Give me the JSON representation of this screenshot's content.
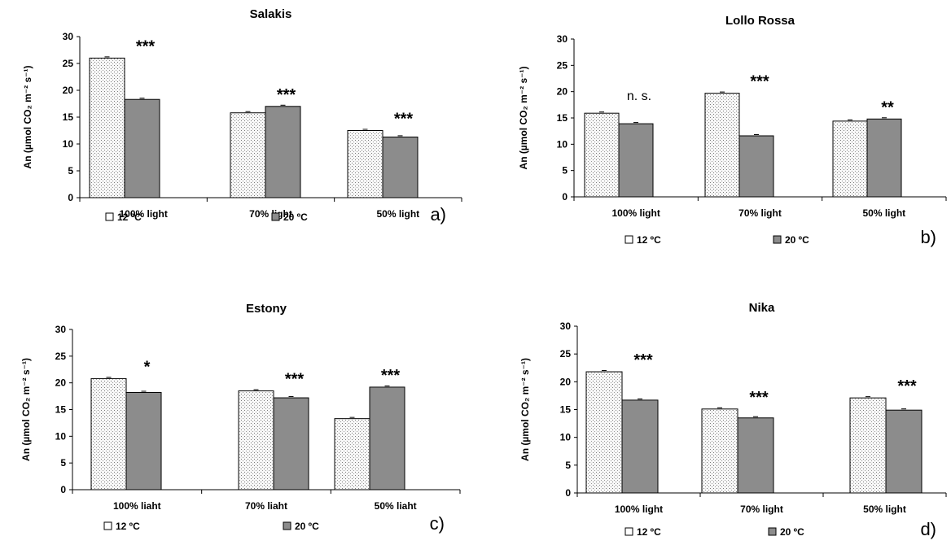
{
  "colors": {
    "series_20": "#8c8c8c",
    "series_12_fill": "#f6f6f6",
    "axis": "#000000"
  },
  "chart_data": [
    {
      "type": "bar",
      "panel": "a)",
      "title": "Salakis",
      "ylabel": "An (µmol CO₂ m⁻² s⁻¹)",
      "ylim": [
        0,
        30
      ],
      "yticks": [
        "0",
        "5",
        "10",
        "15",
        "20",
        "25",
        "30"
      ],
      "categories": [
        "100% light",
        "70% light",
        "50% light"
      ],
      "series": [
        {
          "name": "12 ºC",
          "values": [
            26.0,
            15.8,
            12.5
          ]
        },
        {
          "name": "20 ºC",
          "values": [
            18.3,
            17.0,
            11.3
          ]
        }
      ],
      "significance": [
        "***",
        "***",
        "***"
      ],
      "legend": "bottom"
    },
    {
      "type": "bar",
      "panel": "b)",
      "title": "Lollo Rossa",
      "ylabel": "An (µmol CO₂ m⁻² s⁻¹)",
      "ylim": [
        0,
        30
      ],
      "yticks": [
        "0",
        "5",
        "10",
        "15",
        "20",
        "25",
        "30"
      ],
      "categories": [
        "100% light",
        "70% light",
        "50% light"
      ],
      "series": [
        {
          "name": "12 ºC",
          "values": [
            15.9,
            19.7,
            14.4
          ]
        },
        {
          "name": "20 ºC",
          "values": [
            13.9,
            11.6,
            14.8
          ]
        }
      ],
      "significance": [
        "n. s.",
        "***",
        "**"
      ],
      "legend": "bottom"
    },
    {
      "type": "bar",
      "panel": "c)",
      "title": "Estony",
      "ylabel": "An (µmol CO₂ m⁻² s⁻¹)",
      "ylim": [
        0,
        30
      ],
      "yticks": [
        "0",
        "5",
        "10",
        "15",
        "20",
        "25",
        "30"
      ],
      "categories": [
        "100% liaht",
        "70% liaht",
        "50% liaht"
      ],
      "series": [
        {
          "name": "12 ºC",
          "values": [
            20.8,
            18.5,
            13.3
          ]
        },
        {
          "name": "20 ºC",
          "values": [
            18.2,
            17.2,
            19.2
          ]
        }
      ],
      "significance": [
        "*",
        "***",
        "***"
      ],
      "legend": "bottom"
    },
    {
      "type": "bar",
      "panel": "d)",
      "title": "Nika",
      "ylabel": "An (µmol CO₂ m⁻² s⁻¹)",
      "ylim": [
        0,
        30
      ],
      "yticks": [
        "0",
        "5",
        "10",
        "15",
        "20",
        "25",
        "30"
      ],
      "categories": [
        "100% light",
        "70% light",
        "50% light"
      ],
      "series": [
        {
          "name": "12 ºC",
          "values": [
            21.8,
            15.1,
            17.1
          ]
        },
        {
          "name": "20 ºC",
          "values": [
            16.7,
            13.5,
            14.9
          ]
        }
      ],
      "significance": [
        "***",
        "***",
        "***"
      ],
      "legend": "bottom"
    }
  ]
}
